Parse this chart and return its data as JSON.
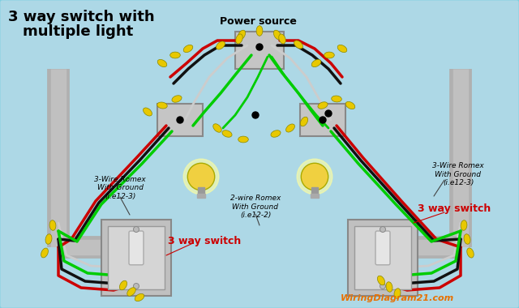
{
  "bg_color": "#add8e6",
  "title_line1": "3 way switch with",
  "title_line2": "multiple light",
  "title_fontsize": 13,
  "title_fontweight": "bold",
  "power_source_label": "Power source",
  "label_3wire_left": "3-Wire Romex\nWith Ground\n(i.e12-3)",
  "label_3wire_right": "3-Wire Romex\nWith Ground\n(i.e12-3)",
  "label_2wire": "2-wire Romex\nWith Ground\n(i.e12-2)",
  "label_switch_left": "3 way switch",
  "label_switch_right": "3 way switch",
  "watermark": "WiringDiagram21.com",
  "wire_red": "#cc0000",
  "wire_black": "#111111",
  "wire_green": "#00cc00",
  "wire_white": "#cccccc",
  "conduit_color": "#b8b8b8",
  "switch_box_color": "#c0c0c0",
  "connector_yellow": "#e8c800",
  "bulb_yellow": "#f0d040",
  "bulb_glow": "#ffffa0"
}
